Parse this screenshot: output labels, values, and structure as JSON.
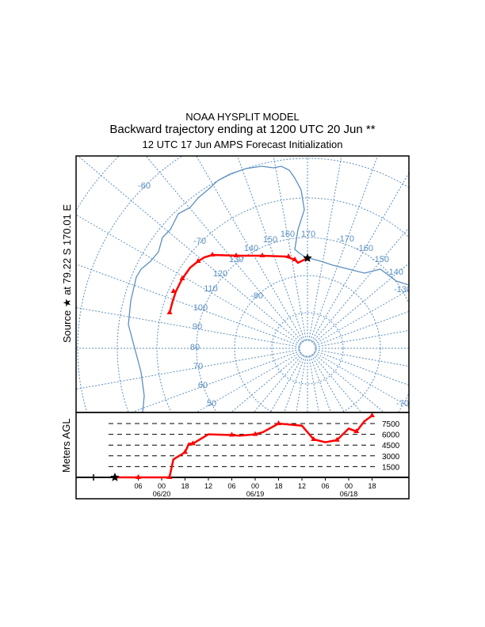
{
  "header": {
    "line1": "NOAA HYSPLIT MODEL",
    "line2": "Backward trajectory ending at 1200 UTC 20 Jun **",
    "line3": "12 UTC 17 Jun    AMPS  Forecast Initialization"
  },
  "source_label": "Source ★ at   79.22 S  170.01 E",
  "map": {
    "grid_color": "#5b8fc0",
    "trajectory_color": "#ff0000",
    "grid_labels": [
      "-60",
      "-70",
      "140",
      "150",
      "160",
      "170",
      "-170",
      "-160",
      "-150",
      "-140",
      "-130",
      "130",
      "120",
      "110",
      "-80",
      "100",
      "90",
      "80",
      "70",
      "60",
      "50",
      "-70"
    ]
  },
  "chart_data": {
    "type": "line",
    "ylabel": "Meters AGL",
    "y_ticks": [
      "7500",
      "6000",
      "4500",
      "3000",
      "1500"
    ],
    "x_tick_labels": [
      "06",
      "00",
      "18",
      "12",
      "06",
      "00",
      "18",
      "12",
      "06",
      "00",
      "18"
    ],
    "date_labels": [
      "06/20",
      "06/19",
      "06/18"
    ],
    "series": [
      {
        "hours_back": [
          0,
          6,
          12,
          14,
          15,
          18,
          19,
          20,
          24,
          30,
          32,
          36,
          38,
          42,
          48,
          51,
          54,
          57,
          60,
          62,
          64,
          66
        ],
        "height_m": [
          0,
          0,
          0,
          0,
          2500,
          3500,
          4700,
          4700,
          6000,
          5900,
          5800,
          6000,
          6300,
          7500,
          7200,
          5300,
          4900,
          5200,
          6800,
          6400,
          7800,
          8600
        ]
      }
    ]
  }
}
